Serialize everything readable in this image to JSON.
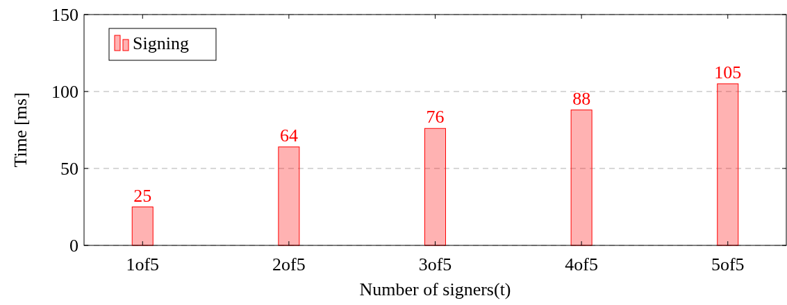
{
  "chart_data": {
    "type": "bar",
    "xlabel": "Number of signers(t)",
    "ylabel": "Time [ms]",
    "categories": [
      "1of5",
      "2of5",
      "3of5",
      "4of5",
      "5of5"
    ],
    "series": [
      {
        "name": "Signing",
        "color": "#ff0000",
        "values": [
          25,
          64,
          76,
          88,
          105
        ]
      }
    ],
    "ylim": [
      0,
      150
    ],
    "yticks": [
      0,
      50,
      100,
      150
    ],
    "grid": "y",
    "legend": "top left",
    "data_labels": true
  }
}
